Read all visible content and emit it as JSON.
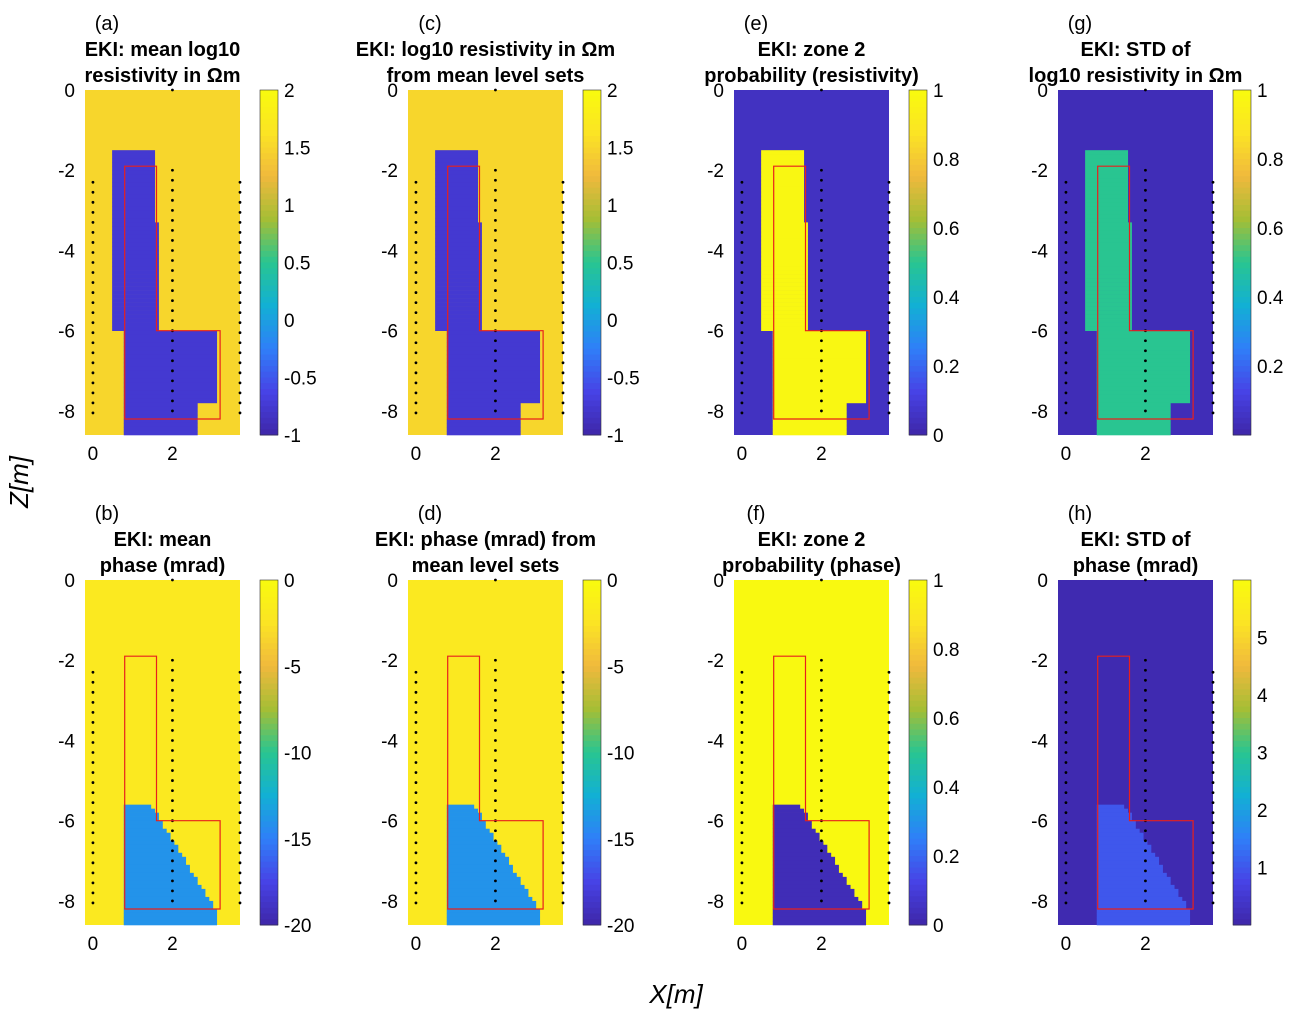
{
  "figure": {
    "global_ylabel": "Z[m]",
    "global_xlabel": "X[m]"
  },
  "colors": {
    "parula_stops": [
      "#3e26a8",
      "#4743e6",
      "#2f7ff8",
      "#12b0d4",
      "#29c591",
      "#a5be35",
      "#f0b93d",
      "#fbe424",
      "#f9fb0e"
    ],
    "box": "#e8201c",
    "sensor": "#000000"
  },
  "chart_data": [
    {
      "id": "a",
      "panel_label": "(a)",
      "type": "heatmap",
      "title_lines": [
        "EKI: mean log10",
        "resistivity in Ωm"
      ],
      "xlim": [
        -0.2,
        3.7
      ],
      "ylim": [
        -8.6,
        0
      ],
      "xticks": [
        0,
        2
      ],
      "yticks": [
        0,
        -2,
        -4,
        -6,
        -8
      ],
      "clim": [
        -1,
        2
      ],
      "cticks": [
        2,
        1.5,
        1,
        0.5,
        0,
        -0.5,
        -1
      ],
      "background_value": 1.5,
      "anomaly_value": -0.75
    },
    {
      "id": "c",
      "panel_label": "(c)",
      "type": "heatmap",
      "title_lines": [
        "EKI: log10 resistivity in Ωm",
        "from mean level sets"
      ],
      "xlim": [
        -0.2,
        3.7
      ],
      "ylim": [
        -8.6,
        0
      ],
      "xticks": [
        0,
        2
      ],
      "yticks": [
        0,
        -2,
        -4,
        -6,
        -8
      ],
      "clim": [
        -1,
        2
      ],
      "cticks": [
        2,
        1.5,
        1,
        0.5,
        0,
        -0.5,
        -1
      ],
      "background_value": 1.5,
      "anomaly_value": -0.75
    },
    {
      "id": "e",
      "panel_label": "(e)",
      "type": "heatmap",
      "title_lines": [
        "EKI: zone 2",
        "probability (resistivity)"
      ],
      "xlim": [
        -0.2,
        3.7
      ],
      "ylim": [
        -8.6,
        0
      ],
      "xticks": [
        0,
        2
      ],
      "yticks": [
        0,
        -2,
        -4,
        -6,
        -8
      ],
      "clim": [
        0,
        1
      ],
      "cticks": [
        1,
        0.8,
        0.6,
        0.4,
        0.2,
        0
      ],
      "background_value": 0.05,
      "anomaly_value": 0.98
    },
    {
      "id": "g",
      "panel_label": "(g)",
      "type": "heatmap",
      "title_lines": [
        "EKI: STD of",
        "log10 resistivity in Ωm"
      ],
      "xlim": [
        -0.2,
        3.7
      ],
      "ylim": [
        -8.6,
        0
      ],
      "xticks": [
        0,
        2
      ],
      "yticks": [
        0,
        -2,
        -4,
        -6,
        -8
      ],
      "clim": [
        0,
        1
      ],
      "cticks": [
        1,
        0.8,
        0.6,
        0.4,
        0.2
      ],
      "background_value": 0.03,
      "anomaly_value": 0.5
    },
    {
      "id": "b",
      "panel_label": "(b)",
      "type": "heatmap",
      "title_lines": [
        "EKI: mean",
        "phase (mrad)"
      ],
      "xlim": [
        -0.2,
        3.7
      ],
      "ylim": [
        -8.6,
        0
      ],
      "xticks": [
        0,
        2
      ],
      "yticks": [
        0,
        -2,
        -4,
        -6,
        -8
      ],
      "clim": [
        -20,
        0
      ],
      "cticks": [
        0,
        -5,
        -10,
        -15,
        -20
      ],
      "background_value": -2,
      "anomaly_value": -14
    },
    {
      "id": "d",
      "panel_label": "(d)",
      "type": "heatmap",
      "title_lines": [
        "EKI: phase (mrad) from",
        "mean level sets"
      ],
      "xlim": [
        -0.2,
        3.7
      ],
      "ylim": [
        -8.6,
        0
      ],
      "xticks": [
        0,
        2
      ],
      "yticks": [
        0,
        -2,
        -4,
        -6,
        -8
      ],
      "clim": [
        -20,
        0
      ],
      "cticks": [
        0,
        -5,
        -10,
        -15,
        -20
      ],
      "background_value": -2,
      "anomaly_value": -14
    },
    {
      "id": "f",
      "panel_label": "(f)",
      "type": "heatmap",
      "title_lines": [
        "EKI: zone 2",
        "probability (phase)"
      ],
      "xlim": [
        -0.2,
        3.7
      ],
      "ylim": [
        -8.6,
        0
      ],
      "xticks": [
        0,
        2
      ],
      "yticks": [
        0,
        -2,
        -4,
        -6,
        -8
      ],
      "clim": [
        0,
        1
      ],
      "cticks": [
        1,
        0.8,
        0.6,
        0.4,
        0.2,
        0
      ],
      "background_value": 0.99,
      "anomaly_value": 0.03
    },
    {
      "id": "h",
      "panel_label": "(h)",
      "type": "heatmap",
      "title_lines": [
        "EKI: STD of",
        "phase (mrad)"
      ],
      "xlim": [
        -0.2,
        3.7
      ],
      "ylim": [
        -8.6,
        0
      ],
      "xticks": [
        0,
        2
      ],
      "yticks": [
        0,
        -2,
        -4,
        -6,
        -8
      ],
      "clim": [
        0,
        6
      ],
      "cticks": [
        5,
        4,
        3,
        2,
        1
      ],
      "background_value": 0.1,
      "anomaly_value": 1.0
    }
  ],
  "target_zone_outline_xy": [
    [
      0.8,
      -1.9
    ],
    [
      1.6,
      -1.9
    ],
    [
      1.6,
      -6.0
    ],
    [
      3.2,
      -6.0
    ],
    [
      3.2,
      -8.2
    ],
    [
      0.8,
      -8.2
    ]
  ],
  "sensor_columns_x": [
    0,
    2,
    3.7
  ],
  "sensor_center_top_z": -2.0
}
